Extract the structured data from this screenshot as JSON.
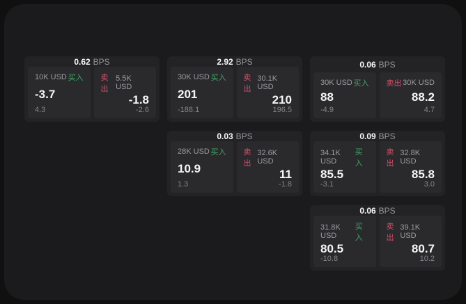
{
  "labels": {
    "buy": "买入",
    "sell": "卖出",
    "bps_unit": "BPS"
  },
  "colors": {
    "buy_tag": "#3fa566",
    "sell_tag": "#cf4f6a",
    "panel_bg": "#1b1b1d",
    "card_bg": "#232326",
    "pane_bg": "#2a2a2d"
  },
  "cards": [
    {
      "bps": "0.62",
      "buy": {
        "amount": "10K USD",
        "value": "-3.7",
        "delta": "4.3"
      },
      "sell": {
        "amount": "5.5K USD",
        "value": "-1.8",
        "delta": "-2.6"
      }
    },
    {
      "bps": "2.92",
      "buy": {
        "amount": "30K USD",
        "value": "201",
        "delta": "-188.1"
      },
      "sell": {
        "amount": "30.1K USD",
        "value": "210",
        "delta": "196.5"
      }
    },
    {
      "bps": "0.06",
      "buy": {
        "amount": "30K USD",
        "value": "88",
        "delta": "-4.9"
      },
      "sell": {
        "amount": "30K USD",
        "value": "88.2",
        "delta": "4.7"
      }
    },
    {
      "bps": "0.03",
      "buy": {
        "amount": "28K USD",
        "value": "10.9",
        "delta": "1.3"
      },
      "sell": {
        "amount": "32.6K USD",
        "value": "11",
        "delta": "-1.8"
      }
    },
    {
      "bps": "0.09",
      "buy": {
        "amount": "34.1K USD",
        "value": "85.5",
        "delta": "-3.1"
      },
      "sell": {
        "amount": "32.8K USD",
        "value": "85.8",
        "delta": "3.0"
      }
    },
    {
      "bps": "0.06",
      "buy": {
        "amount": "31.8K USD",
        "value": "80.5",
        "delta": "-10.8"
      },
      "sell": {
        "amount": "39.1K USD",
        "value": "80.7",
        "delta": "10.2"
      }
    }
  ]
}
